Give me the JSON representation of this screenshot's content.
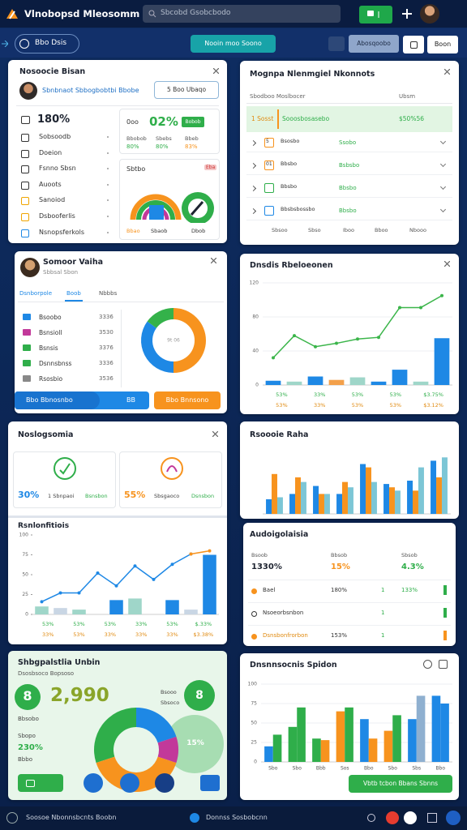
{
  "topbar": {
    "title": "Vlnobopsd Mleosomm",
    "search": "Sbcobd Gsobcbodo"
  },
  "toolbar": {
    "workspace": "Bbo Dsis",
    "primary": "Nooin moo Soono",
    "secondary": "Abosqoobo",
    "action": "Boon"
  },
  "profile_card": {
    "title": "Nosoocie Bisan",
    "user": "Sbnbnaot Sbbogbobtbi Bbobe",
    "button": "5 Boo Ubaqo",
    "headline": "180%",
    "menu": [
      "Sobsoodb",
      "Doeion",
      "Fsnno Sbsn",
      "Auoots",
      "Sanoiod",
      "Dsbooferlis",
      "Nsnopsferkols"
    ],
    "stat": {
      "label": "0oo",
      "value": "02%",
      "badge": "Bobob",
      "columns": [
        {
          "name": "Bbobob",
          "value": "80%"
        },
        {
          "name": "Sbebs",
          "value": "80%"
        },
        {
          "name": "Bbeb",
          "value": "83%"
        }
      ]
    },
    "gauge": {
      "title": "Sbtbo",
      "badge": "Eba",
      "labels": [
        "Bbao",
        "Sbaob",
        "Dbob"
      ]
    }
  },
  "member_card": {
    "name": "Somoor Vaiha",
    "role": "Sbbsal Sbon",
    "tabs": [
      "Dsnborpole",
      "Boob",
      "Nbbbs"
    ],
    "rows": [
      [
        "Bsoobo",
        "3336"
      ],
      [
        "Bsnsioll",
        "3530"
      ],
      [
        "Bsnsis",
        "3376"
      ],
      [
        "Dsnnsbnss",
        "3336"
      ],
      [
        "Rsosbio",
        "3536"
      ]
    ],
    "donut": {
      "type": "donut",
      "center": "9t 06",
      "values": [
        50,
        35,
        15
      ],
      "colors": [
        "#f7931e",
        "#1e88e5",
        "#34b24a"
      ]
    },
    "primary_button": "Bbo Bbnosnbo",
    "primary_badge": "BB",
    "secondary_button": "Bbo Bnnsono"
  },
  "orders_table": {
    "title": "Mognpa Nlenmgiel Nkonnots",
    "columns": [
      "Sbodboo Moslbocer",
      "Ubsm"
    ],
    "rows": [
      {
        "rank": "1 Sosst",
        "name": "Sooosbosasebo",
        "value": "$50%56"
      },
      {
        "rank": "5",
        "name": "Bsosbo",
        "value": "Ssobo"
      },
      {
        "rank": "01",
        "name": "Bbsbo",
        "value": "Bsbsbo"
      },
      {
        "name": "Bbsbo",
        "value": "Bbsbo"
      },
      {
        "name": "Bbsbsbossbo",
        "value": "Bbsbo"
      }
    ],
    "footer": [
      "Sbsoo",
      "Sbso",
      "Iboo",
      "Bboo",
      "Nbooo"
    ]
  },
  "trend_panel": {
    "title": "Dnsdis Rbeloeonen",
    "chart": {
      "type": "combo",
      "ylim": [
        0,
        120
      ],
      "yticks": [
        0,
        40,
        80,
        120
      ],
      "grid": true,
      "series": [
        {
          "type": "bar",
          "colors": [
            "#1e88e5",
            "#9fd6c9",
            "#1e88e5",
            "#f3a04a",
            "#9fd6c9",
            "#1e88e5",
            "#1e88e5",
            "#9fd6c9",
            "#1e88e5"
          ],
          "values": [
            5,
            4,
            10,
            6,
            9,
            4,
            18,
            4,
            55
          ]
        },
        {
          "type": "line",
          "color": "#3bb54a",
          "values": [
            32,
            58,
            45,
            49,
            54,
            56,
            91,
            91,
            105
          ]
        }
      ],
      "footer_labels": [
        [
          "53%",
          "33%",
          "53%",
          "53%",
          "$3.75%"
        ],
        [
          "53%",
          "33%",
          "53%",
          "53%",
          "$3.12%"
        ]
      ]
    }
  },
  "kpi_panel": {
    "title": "Noslogsomia",
    "kpis": [
      {
        "value": "30%",
        "label": "1 Sbnpaoi",
        "note": "Bsnsbon"
      },
      {
        "value": "55%",
        "label": "Sbsgaoco",
        "note": "Dsnsbon"
      }
    ],
    "chart_title": "Rsnlonfitiois",
    "chart": {
      "type": "combo",
      "ylim": [
        0,
        100
      ],
      "yticks": [
        0,
        25,
        50,
        75,
        100
      ],
      "grid": false,
      "series": [
        {
          "type": "bar",
          "colors": [
            "#9fd6c9",
            "#c9d6e4",
            "#9fd6c9",
            "#1e88e5",
            "#1e88e5",
            "#9fd6c9",
            "#1e88e5",
            "#1e88e5",
            "#c9d6e4",
            "#1e88e5"
          ],
          "values": [
            10,
            8,
            6,
            0,
            18,
            20,
            0,
            18,
            6,
            75
          ]
        },
        {
          "type": "line",
          "color": "#1e88e5",
          "values": [
            16,
            27,
            27,
            52,
            36,
            61,
            44,
            63,
            76,
            null
          ]
        },
        {
          "type": "line",
          "color": "#f7931e",
          "values": [
            null,
            null,
            null,
            null,
            null,
            null,
            null,
            null,
            76,
            80
          ]
        }
      ],
      "footer_labels": [
        [
          "53%",
          "53%",
          "53%",
          "33%",
          "53%",
          "$.33%"
        ],
        [
          "33%",
          "53%",
          "33%",
          "33%",
          "33%",
          "$3.38%"
        ]
      ]
    }
  },
  "ratio_panel": {
    "title": "Rsoooie Raha",
    "chart": {
      "type": "bar",
      "ylim": [
        0,
        100
      ],
      "series": [
        {
          "type": "bar",
          "color": "#1e88e5",
          "values": [
            22,
            30,
            42,
            30,
            75,
            45,
            50,
            80
          ]
        },
        {
          "type": "bar",
          "color": "#f7931e",
          "values": [
            60,
            55,
            30,
            48,
            70,
            40,
            35,
            55
          ]
        },
        {
          "type": "bar",
          "color": "#7cc6d6",
          "values": [
            25,
            48,
            30,
            40,
            48,
            35,
            70,
            85
          ]
        }
      ]
    }
  },
  "audit_table": {
    "title": "Audoigolaisia",
    "columns": [
      "Bsoob",
      "Bbsob",
      "Sbsob"
    ],
    "totals": [
      "1330%",
      "15%",
      "4.3%"
    ],
    "rows": [
      {
        "name": "Bael",
        "value": "180%",
        "rank": "1",
        "share": "133%"
      },
      {
        "name": "Nsoeorbsnbon",
        "rank": "1"
      },
      {
        "name": "Dsnsbonfrorbon",
        "value": "153%",
        "rank": "1"
      }
    ]
  },
  "summary_panel": {
    "title": "Shbgpalstlia Unbin",
    "subtitle": "Dsosbsoco Bopsoso",
    "badge": "8",
    "total": "2,990",
    "total_label": "Bbsobo",
    "rate_label": "Sbopo",
    "rate": "230%",
    "rate_note": "Bbbo",
    "legend": [
      "Bsooo",
      "Sbsoco"
    ],
    "side_badge": "8",
    "bubble_label": "15%",
    "pie": {
      "type": "pie",
      "values": [
        20,
        10,
        40,
        30
      ],
      "colors": [
        "#1e88e5",
        "#c2399a",
        "#f7931e",
        "#2fae4a"
      ]
    }
  },
  "volume_panel": {
    "title": "Dnsnnsocnis Spidon",
    "button": "Vbtb tcbon Bbans Sbnns",
    "chart": {
      "type": "bar",
      "ylim": [
        0,
        100
      ],
      "yticks": [
        0,
        25,
        50,
        75,
        100
      ],
      "grid": true,
      "categories": [
        "Sbo",
        "Sbo",
        "Bbb",
        "Sos",
        "Bbo",
        "Sbo",
        "Sbs",
        "Bbo"
      ],
      "series": [
        {
          "type": "bar",
          "colors": [
            "#1e88e5",
            "#2fae4a",
            "#2fae4a",
            "#f7931e",
            "#1e88e5",
            "#f7931e",
            "#1e88e5",
            "#1e88e5"
          ],
          "values": [
            20,
            45,
            30,
            65,
            55,
            40,
            55,
            85
          ]
        },
        {
          "type": "bar",
          "colors": [
            "#2fae4a",
            "#2fae4a",
            "#f7931e",
            "#2fae4a",
            "#f7931e",
            "#2fae4a",
            "#8fb0d0",
            "#1e88e5"
          ],
          "values": [
            35,
            70,
            28,
            70,
            30,
            60,
            85,
            75
          ]
        }
      ]
    }
  },
  "statusbar": {
    "left": "Soosoe Nbonnsbcnts Boobn",
    "center": "Donnss Sosbobcnn"
  }
}
